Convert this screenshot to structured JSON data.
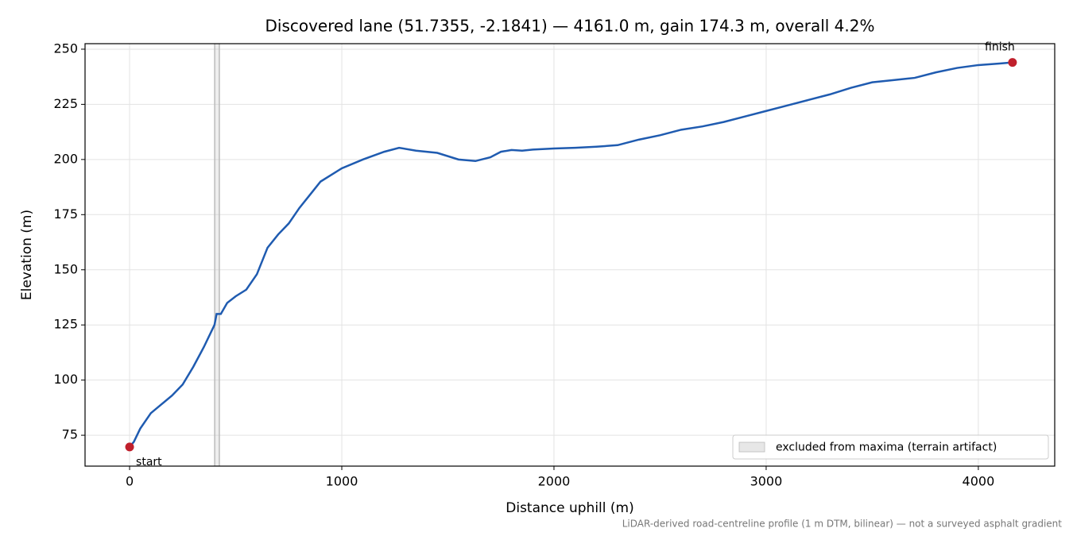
{
  "chart_data": {
    "type": "line",
    "title": "Discovered lane (51.7355, -2.1841) — 4161.0 m, gain 174.3 m, overall 4.2%",
    "x_label": "Distance uphill (m)",
    "y_label": "Elevation (m)",
    "footnote": "LiDAR-derived road-centreline profile (1 m DTM, bilinear) — not a surveyed asphalt gradient",
    "x": [
      0,
      20,
      50,
      100,
      150,
      200,
      250,
      300,
      350,
      400,
      410,
      430,
      460,
      500,
      550,
      600,
      650,
      700,
      750,
      800,
      850,
      900,
      950,
      1000,
      1100,
      1200,
      1270,
      1350,
      1450,
      1550,
      1630,
      1700,
      1750,
      1800,
      1850,
      1900,
      2000,
      2100,
      2200,
      2300,
      2400,
      2500,
      2600,
      2700,
      2800,
      2900,
      3000,
      3100,
      3200,
      3300,
      3400,
      3500,
      3600,
      3700,
      3800,
      3900,
      4000,
      4100,
      4161
    ],
    "series": [
      {
        "color": "#1f5bb0",
        "values": [
          69.7,
          72,
          78,
          85,
          89,
          93,
          98,
          106,
          115,
          125,
          130,
          130,
          135,
          138,
          141,
          148,
          160,
          166,
          171,
          178,
          184,
          190,
          193,
          196,
          200,
          203.5,
          205.3,
          204,
          203,
          200,
          199.3,
          201,
          203.5,
          204.3,
          204,
          204.5,
          205,
          205.3,
          205.8,
          206.5,
          209,
          211,
          213.5,
          215,
          217,
          219.5,
          222,
          224.5,
          227,
          229.5,
          232.5,
          235,
          236,
          237,
          239.5,
          241.5,
          242.8,
          243.5,
          244
        ]
      }
    ],
    "markers": [
      {
        "label": "start",
        "x": 0,
        "y": 69.7,
        "color": "#c0202c"
      },
      {
        "label": "finish",
        "x": 4161,
        "y": 244,
        "color": "#c0202c"
      }
    ],
    "excluded": {
      "label": "excluded from maxima (terrain artifact)",
      "range": [
        401,
        423
      ],
      "color": "#bbbbbb"
    },
    "xlim": [
      -210,
      4360
    ],
    "ylim": [
      61,
      252.5
    ],
    "xticks": [
      0,
      1000,
      2000,
      3000,
      4000
    ],
    "yticks": [
      75,
      100,
      125,
      150,
      175,
      200,
      225,
      250
    ],
    "grid": true,
    "legend": "lower right"
  }
}
